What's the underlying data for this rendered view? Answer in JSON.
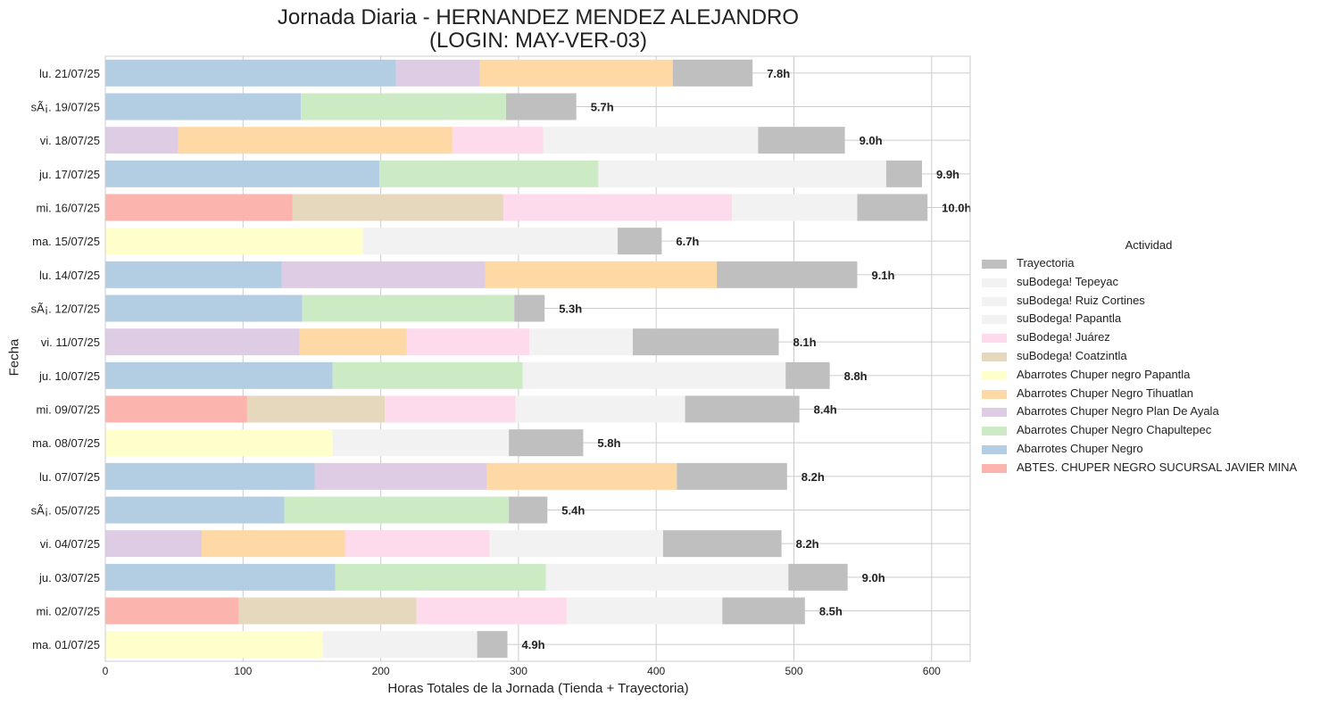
{
  "chart_data": {
    "type": "bar",
    "orientation": "horizontal",
    "stacked": true,
    "title": "Jornada Diaria - HERNANDEZ MENDEZ ALEJANDRO",
    "subtitle": "(LOGIN: MAY-VER-03)",
    "xlabel": "Horas Totales de la Jornada (Tienda + Trayectoria)",
    "ylabel": "Fecha",
    "xlim": [
      0,
      628
    ],
    "xticks": [
      0,
      100,
      200,
      300,
      400,
      500,
      600
    ],
    "grid": true,
    "legend_title": "Actividad",
    "legend_position": "center-right",
    "legend": [
      {
        "name": "Trayectoria",
        "color": "#bfbfbf"
      },
      {
        "name": "suBodega! Tepeyac",
        "color": "#f2f2f2"
      },
      {
        "name": "suBodega! Ruiz Cortines",
        "color": "#f2f2f2"
      },
      {
        "name": "suBodega! Papantla",
        "color": "#f2f2f2"
      },
      {
        "name": "suBodega! Juárez",
        "color": "#fddaec"
      },
      {
        "name": "suBodega! Coatzintla",
        "color": "#e5d8bd"
      },
      {
        "name": "Abarrotes Chuper negro Papantla",
        "color": "#ffffcc"
      },
      {
        "name": "Abarrotes Chuper Negro Tihuatlan",
        "color": "#fed9a6"
      },
      {
        "name": "Abarrotes Chuper Negro Plan De Ayala",
        "color": "#decbe4"
      },
      {
        "name": "Abarrotes Chuper Negro Chapultepec",
        "color": "#ccebc5"
      },
      {
        "name": "Abarrotes Chuper Negro",
        "color": "#b3cde3"
      },
      {
        "name": "ABTES. CHUPER NEGRO SUCURSAL JAVIER MINA",
        "color": "#fbb4ae"
      }
    ],
    "categories": [
      "lu. 21/07/25",
      "sÃ¡. 19/07/25",
      "vi. 18/07/25",
      "ju. 17/07/25",
      "mi. 16/07/25",
      "ma. 15/07/25",
      "lu. 14/07/25",
      "sÃ¡. 12/07/25",
      "vi. 11/07/25",
      "ju. 10/07/25",
      "mi. 09/07/25",
      "ma. 08/07/25",
      "lu. 07/07/25",
      "sÃ¡. 05/07/25",
      "vi. 04/07/25",
      "ju. 03/07/25",
      "mi. 02/07/25",
      "ma. 01/07/25"
    ],
    "bars": [
      {
        "total_label": "7.8h",
        "segments": [
          {
            "activity": "Abarrotes Chuper Negro",
            "color": "#b3cde3",
            "value": 211
          },
          {
            "activity": "Abarrotes Chuper Negro Plan De Ayala",
            "color": "#decbe4",
            "value": 61
          },
          {
            "activity": "Abarrotes Chuper Negro Tihuatlan",
            "color": "#fed9a6",
            "value": 140
          },
          {
            "activity": "Trayectoria",
            "color": "#bfbfbf",
            "value": 58
          }
        ]
      },
      {
        "total_label": "5.7h",
        "segments": [
          {
            "activity": "Abarrotes Chuper Negro",
            "color": "#b3cde3",
            "value": 142
          },
          {
            "activity": "Abarrotes Chuper Negro Chapultepec",
            "color": "#ccebc5",
            "value": 149
          },
          {
            "activity": "Trayectoria",
            "color": "#bfbfbf",
            "value": 51
          }
        ]
      },
      {
        "total_label": "9.0h",
        "segments": [
          {
            "activity": "Abarrotes Chuper Negro Plan De Ayala",
            "color": "#decbe4",
            "value": 53
          },
          {
            "activity": "Abarrotes Chuper Negro Tihuatlan",
            "color": "#fed9a6",
            "value": 199
          },
          {
            "activity": "suBodega! Juárez",
            "color": "#fddaec",
            "value": 66
          },
          {
            "activity": "suBodega! Papantla",
            "color": "#f2f2f2",
            "value": 156
          },
          {
            "activity": "Trayectoria",
            "color": "#bfbfbf",
            "value": 63
          }
        ]
      },
      {
        "total_label": "9.9h",
        "segments": [
          {
            "activity": "Abarrotes Chuper Negro",
            "color": "#b3cde3",
            "value": 199
          },
          {
            "activity": "Abarrotes Chuper Negro Chapultepec",
            "color": "#ccebc5",
            "value": 159
          },
          {
            "activity": "suBodega! Tepeyac",
            "color": "#f2f2f2",
            "value": 209
          },
          {
            "activity": "Trayectoria",
            "color": "#bfbfbf",
            "value": 26
          }
        ]
      },
      {
        "total_label": "10.0h",
        "segments": [
          {
            "activity": "ABTES. CHUPER NEGRO SUCURSAL JAVIER MINA",
            "color": "#fbb4ae",
            "value": 136
          },
          {
            "activity": "suBodega! Coatzintla",
            "color": "#e5d8bd",
            "value": 153
          },
          {
            "activity": "suBodega! Juárez",
            "color": "#fddaec",
            "value": 166
          },
          {
            "activity": "suBodega! Ruiz Cortines",
            "color": "#f2f2f2",
            "value": 91
          },
          {
            "activity": "Trayectoria",
            "color": "#bfbfbf",
            "value": 51
          }
        ]
      },
      {
        "total_label": "6.7h",
        "segments": [
          {
            "activity": "Abarrotes Chuper negro Papantla",
            "color": "#ffffcc",
            "value": 187
          },
          {
            "activity": "suBodega! Papantla",
            "color": "#f2f2f2",
            "value": 185
          },
          {
            "activity": "Trayectoria",
            "color": "#bfbfbf",
            "value": 32
          }
        ]
      },
      {
        "total_label": "9.1h",
        "segments": [
          {
            "activity": "Abarrotes Chuper Negro",
            "color": "#b3cde3",
            "value": 128
          },
          {
            "activity": "Abarrotes Chuper Negro Plan De Ayala",
            "color": "#decbe4",
            "value": 148
          },
          {
            "activity": "Abarrotes Chuper Negro Tihuatlan",
            "color": "#fed9a6",
            "value": 168
          },
          {
            "activity": "Trayectoria",
            "color": "#bfbfbf",
            "value": 102
          }
        ]
      },
      {
        "total_label": "5.3h",
        "segments": [
          {
            "activity": "Abarrotes Chuper Negro",
            "color": "#b3cde3",
            "value": 143
          },
          {
            "activity": "Abarrotes Chuper Negro Chapultepec",
            "color": "#ccebc5",
            "value": 154
          },
          {
            "activity": "Trayectoria",
            "color": "#bfbfbf",
            "value": 22
          }
        ]
      },
      {
        "total_label": "8.1h",
        "segments": [
          {
            "activity": "Abarrotes Chuper Negro Plan De Ayala",
            "color": "#decbe4",
            "value": 141
          },
          {
            "activity": "Abarrotes Chuper Negro Tihuatlan",
            "color": "#fed9a6",
            "value": 78
          },
          {
            "activity": "suBodega! Juárez",
            "color": "#fddaec",
            "value": 89
          },
          {
            "activity": "suBodega! Papantla",
            "color": "#f2f2f2",
            "value": 75
          },
          {
            "activity": "Trayectoria",
            "color": "#bfbfbf",
            "value": 106
          }
        ]
      },
      {
        "total_label": "8.8h",
        "segments": [
          {
            "activity": "Abarrotes Chuper Negro",
            "color": "#b3cde3",
            "value": 165
          },
          {
            "activity": "Abarrotes Chuper Negro Chapultepec",
            "color": "#ccebc5",
            "value": 138
          },
          {
            "activity": "suBodega! Tepeyac",
            "color": "#f2f2f2",
            "value": 191
          },
          {
            "activity": "Trayectoria",
            "color": "#bfbfbf",
            "value": 32
          }
        ]
      },
      {
        "total_label": "8.4h",
        "segments": [
          {
            "activity": "ABTES. CHUPER NEGRO SUCURSAL JAVIER MINA",
            "color": "#fbb4ae",
            "value": 103
          },
          {
            "activity": "suBodega! Coatzintla",
            "color": "#e5d8bd",
            "value": 100
          },
          {
            "activity": "suBodega! Juárez",
            "color": "#fddaec",
            "value": 95
          },
          {
            "activity": "suBodega! Ruiz Cortines",
            "color": "#f2f2f2",
            "value": 123
          },
          {
            "activity": "Trayectoria",
            "color": "#bfbfbf",
            "value": 83
          }
        ]
      },
      {
        "total_label": "5.8h",
        "segments": [
          {
            "activity": "Abarrotes Chuper negro Papantla",
            "color": "#ffffcc",
            "value": 165
          },
          {
            "activity": "suBodega! Papantla",
            "color": "#f2f2f2",
            "value": 128
          },
          {
            "activity": "Trayectoria",
            "color": "#bfbfbf",
            "value": 54
          }
        ]
      },
      {
        "total_label": "8.2h",
        "segments": [
          {
            "activity": "Abarrotes Chuper Negro",
            "color": "#b3cde3",
            "value": 152
          },
          {
            "activity": "Abarrotes Chuper Negro Plan De Ayala",
            "color": "#decbe4",
            "value": 125
          },
          {
            "activity": "Abarrotes Chuper Negro Tihuatlan",
            "color": "#fed9a6",
            "value": 138
          },
          {
            "activity": "Trayectoria",
            "color": "#bfbfbf",
            "value": 80
          }
        ]
      },
      {
        "total_label": "5.4h",
        "segments": [
          {
            "activity": "Abarrotes Chuper Negro",
            "color": "#b3cde3",
            "value": 130
          },
          {
            "activity": "Abarrotes Chuper Negro Chapultepec",
            "color": "#ccebc5",
            "value": 163
          },
          {
            "activity": "Trayectoria",
            "color": "#bfbfbf",
            "value": 28
          }
        ]
      },
      {
        "total_label": "8.2h",
        "segments": [
          {
            "activity": "Abarrotes Chuper Negro Plan De Ayala",
            "color": "#decbe4",
            "value": 70
          },
          {
            "activity": "Abarrotes Chuper Negro Tihuatlan",
            "color": "#fed9a6",
            "value": 104
          },
          {
            "activity": "suBodega! Juárez",
            "color": "#fddaec",
            "value": 105
          },
          {
            "activity": "suBodega! Papantla",
            "color": "#f2f2f2",
            "value": 126
          },
          {
            "activity": "Trayectoria",
            "color": "#bfbfbf",
            "value": 86
          }
        ]
      },
      {
        "total_label": "9.0h",
        "segments": [
          {
            "activity": "Abarrotes Chuper Negro",
            "color": "#b3cde3",
            "value": 167
          },
          {
            "activity": "Abarrotes Chuper Negro Chapultepec",
            "color": "#ccebc5",
            "value": 153
          },
          {
            "activity": "suBodega! Tepeyac",
            "color": "#f2f2f2",
            "value": 176
          },
          {
            "activity": "Trayectoria",
            "color": "#bfbfbf",
            "value": 43
          }
        ]
      },
      {
        "total_label": "8.5h",
        "segments": [
          {
            "activity": "ABTES. CHUPER NEGRO SUCURSAL JAVIER MINA",
            "color": "#fbb4ae",
            "value": 97
          },
          {
            "activity": "suBodega! Coatzintla",
            "color": "#e5d8bd",
            "value": 129
          },
          {
            "activity": "suBodega! Juárez",
            "color": "#fddaec",
            "value": 109
          },
          {
            "activity": "suBodega! Ruiz Cortines",
            "color": "#f2f2f2",
            "value": 113
          },
          {
            "activity": "Trayectoria",
            "color": "#bfbfbf",
            "value": 60
          }
        ]
      },
      {
        "total_label": "4.9h",
        "segments": [
          {
            "activity": "Abarrotes Chuper negro Papantla",
            "color": "#ffffcc",
            "value": 158
          },
          {
            "activity": "suBodega! Papantla",
            "color": "#f2f2f2",
            "value": 112
          },
          {
            "activity": "Trayectoria",
            "color": "#bfbfbf",
            "value": 22
          }
        ]
      }
    ]
  }
}
